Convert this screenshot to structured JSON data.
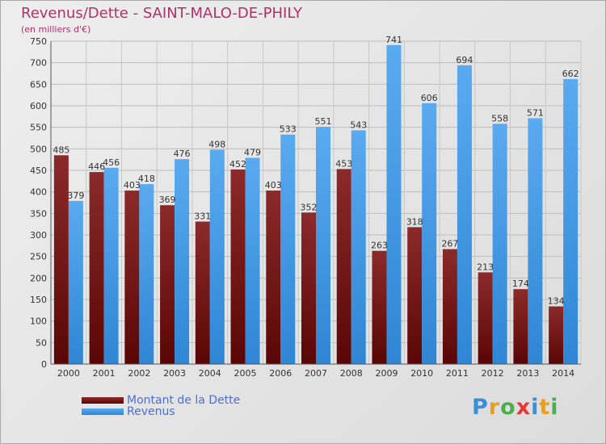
{
  "title": "Revenus/Dette - SAINT-MALO-DE-PHILY",
  "subtitle": "(en milliers d'€)",
  "colors": {
    "dette": "#7a1515",
    "revenus": "#3f97e2",
    "title": "#b0306a"
  },
  "logo": {
    "letters": [
      "P",
      "r",
      "o",
      "x",
      "i",
      "t",
      "i"
    ],
    "colors": [
      "#3a8fd8",
      "#e8a020",
      "#4ab04a",
      "#e03a3a",
      "#3a8fd8",
      "#e8a020",
      "#4ab04a"
    ]
  },
  "chart_data": {
    "type": "bar",
    "title": "Revenus/Dette - SAINT-MALO-DE-PHILY",
    "subtitle": "(en milliers d'€)",
    "categories": [
      "2000",
      "2001",
      "2002",
      "2003",
      "2004",
      "2005",
      "2006",
      "2007",
      "2008",
      "2009",
      "2010",
      "2011",
      "2012",
      "2013",
      "2014"
    ],
    "series": [
      {
        "name": "Montant de la Dette",
        "values": [
          485,
          446,
          403,
          369,
          331,
          452,
          403,
          352,
          453,
          263,
          318,
          267,
          213,
          174,
          134
        ]
      },
      {
        "name": "Revenus",
        "values": [
          379,
          456,
          418,
          476,
          498,
          479,
          533,
          551,
          543,
          741,
          606,
          694,
          558,
          571,
          662
        ]
      }
    ],
    "ylim": [
      0,
      750
    ],
    "yticks": [
      0,
      50,
      100,
      150,
      200,
      250,
      300,
      350,
      400,
      450,
      500,
      550,
      600,
      650,
      700,
      750
    ],
    "grid": true,
    "legend_position": "bottom-left"
  }
}
